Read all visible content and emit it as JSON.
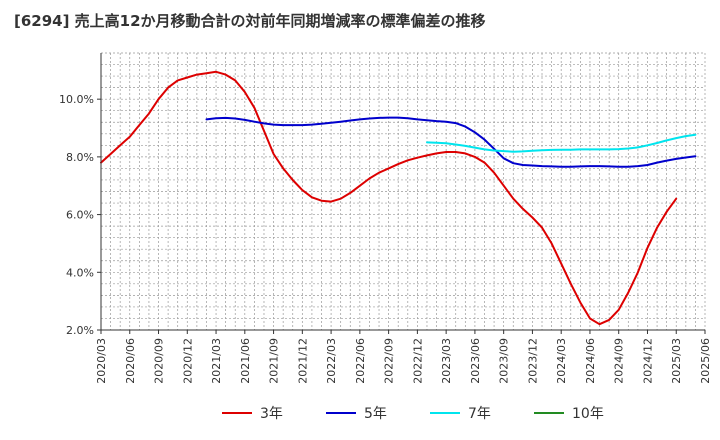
{
  "title": "[6294]  売上高12か月移動合計の対前年同期増減率の標準偏差の推移",
  "chart_data": {
    "type": "line",
    "title": "[6294]  売上高12か月移動合計の対前年同期増減率の標準偏差の推移",
    "xlabel": "",
    "ylabel": "",
    "ylim": [
      2.0,
      11.6
    ],
    "y_ticks": [
      2.0,
      4.0,
      6.0,
      8.0,
      10.0
    ],
    "y_tick_labels": [
      "2.0%",
      "4.0%",
      "6.0%",
      "8.0%",
      "10.0%"
    ],
    "x_tick_labels": [
      "2020/03",
      "2020/06",
      "2020/09",
      "2020/12",
      "2021/03",
      "2021/06",
      "2021/09",
      "2021/12",
      "2022/03",
      "2022/06",
      "2022/09",
      "2022/12",
      "2023/03",
      "2023/06",
      "2023/09",
      "2023/12",
      "2024/03",
      "2024/06",
      "2024/09",
      "2024/12",
      "2025/03",
      "2025/06"
    ],
    "grid": true,
    "legend_position": "bottom",
    "series": [
      {
        "name": "3年",
        "color": "#dd0000",
        "points": [
          [
            "2020/03",
            7.8
          ],
          [
            "2020/04",
            8.1
          ],
          [
            "2020/05",
            8.4
          ],
          [
            "2020/06",
            8.7
          ],
          [
            "2020/07",
            9.1
          ],
          [
            "2020/08",
            9.5
          ],
          [
            "2020/09",
            10.0
          ],
          [
            "2020/10",
            10.4
          ],
          [
            "2020/11",
            10.65
          ],
          [
            "2020/12",
            10.75
          ],
          [
            "2021/01",
            10.85
          ],
          [
            "2021/02",
            10.9
          ],
          [
            "2021/03",
            10.95
          ],
          [
            "2021/04",
            10.85
          ],
          [
            "2021/05",
            10.65
          ],
          [
            "2021/06",
            10.25
          ],
          [
            "2021/07",
            9.7
          ],
          [
            "2021/08",
            8.9
          ],
          [
            "2021/09",
            8.1
          ],
          [
            "2021/10",
            7.6
          ],
          [
            "2021/11",
            7.2
          ],
          [
            "2021/12",
            6.85
          ],
          [
            "2021/13",
            6.6
          ],
          [
            "2022/02",
            6.48
          ],
          [
            "2022/03",
            6.45
          ],
          [
            "2022/04",
            6.55
          ],
          [
            "2022/05",
            6.75
          ],
          [
            "2022/06",
            7.0
          ],
          [
            "2022/07",
            7.25
          ],
          [
            "2022/08",
            7.45
          ],
          [
            "2022/09",
            7.6
          ],
          [
            "2022/10",
            7.75
          ],
          [
            "2022/11",
            7.88
          ],
          [
            "2022/12",
            7.97
          ],
          [
            "2023/01",
            8.05
          ],
          [
            "2023/02",
            8.12
          ],
          [
            "2023/03",
            8.17
          ],
          [
            "2023/04",
            8.17
          ],
          [
            "2023/05",
            8.12
          ],
          [
            "2023/06",
            8.0
          ],
          [
            "2023/07",
            7.8
          ],
          [
            "2023/08",
            7.45
          ],
          [
            "2023/09",
            7.0
          ],
          [
            "2023/10",
            6.55
          ],
          [
            "2023/11",
            6.2
          ],
          [
            "2023/12",
            5.9
          ],
          [
            "2024/01",
            5.55
          ],
          [
            "2024/02",
            5.0
          ],
          [
            "2024/03",
            4.3
          ],
          [
            "2024/04",
            3.6
          ],
          [
            "2024/05",
            2.95
          ],
          [
            "2024/06",
            2.4
          ],
          [
            "2024/07",
            2.2
          ],
          [
            "2024/08",
            2.35
          ],
          [
            "2024/09",
            2.7
          ],
          [
            "2024/10",
            3.3
          ],
          [
            "2024/11",
            4.0
          ],
          [
            "2024/12",
            4.85
          ],
          [
            "2025/01",
            5.55
          ],
          [
            "2025/02",
            6.1
          ],
          [
            "2025/03",
            6.55
          ]
        ]
      },
      {
        "name": "5年",
        "color": "#0000cc",
        "points": [
          [
            "2021/02",
            9.3
          ],
          [
            "2021/03",
            9.34
          ],
          [
            "2021/04",
            9.35
          ],
          [
            "2021/05",
            9.33
          ],
          [
            "2021/06",
            9.28
          ],
          [
            "2021/07",
            9.22
          ],
          [
            "2021/08",
            9.16
          ],
          [
            "2021/09",
            9.12
          ],
          [
            "2021/10",
            9.1
          ],
          [
            "2021/11",
            9.1
          ],
          [
            "2021/12",
            9.1
          ],
          [
            "2021/13",
            9.12
          ],
          [
            "2022/02",
            9.15
          ],
          [
            "2022/03",
            9.18
          ],
          [
            "2022/04",
            9.22
          ],
          [
            "2022/05",
            9.26
          ],
          [
            "2022/06",
            9.3
          ],
          [
            "2022/07",
            9.33
          ],
          [
            "2022/08",
            9.35
          ],
          [
            "2022/09",
            9.36
          ],
          [
            "2022/10",
            9.36
          ],
          [
            "2022/11",
            9.34
          ],
          [
            "2022/12",
            9.3
          ],
          [
            "2023/01",
            9.27
          ],
          [
            "2023/02",
            9.24
          ],
          [
            "2023/03",
            9.22
          ],
          [
            "2023/04",
            9.17
          ],
          [
            "2023/05",
            9.05
          ],
          [
            "2023/06",
            8.85
          ],
          [
            "2023/07",
            8.6
          ],
          [
            "2023/08",
            8.28
          ],
          [
            "2023/09",
            7.95
          ],
          [
            "2023/10",
            7.78
          ],
          [
            "2023/11",
            7.72
          ],
          [
            "2023/12",
            7.7
          ],
          [
            "2024/01",
            7.68
          ],
          [
            "2024/02",
            7.67
          ],
          [
            "2024/03",
            7.66
          ],
          [
            "2024/04",
            7.66
          ],
          [
            "2024/05",
            7.67
          ],
          [
            "2024/06",
            7.68
          ],
          [
            "2024/07",
            7.68
          ],
          [
            "2024/08",
            7.67
          ],
          [
            "2024/09",
            7.66
          ],
          [
            "2024/10",
            7.66
          ],
          [
            "2024/11",
            7.68
          ],
          [
            "2024/12",
            7.72
          ],
          [
            "2025/01",
            7.8
          ],
          [
            "2025/02",
            7.87
          ],
          [
            "2025/03",
            7.93
          ],
          [
            "2025/04",
            7.98
          ],
          [
            "2025/05",
            8.02
          ]
        ]
      },
      {
        "name": "7年",
        "color": "#00e5ee",
        "points": [
          [
            "2023/01",
            8.5
          ],
          [
            "2023/02",
            8.49
          ],
          [
            "2023/03",
            8.47
          ],
          [
            "2023/04",
            8.43
          ],
          [
            "2023/05",
            8.38
          ],
          [
            "2023/06",
            8.32
          ],
          [
            "2023/07",
            8.26
          ],
          [
            "2023/08",
            8.22
          ],
          [
            "2023/09",
            8.2
          ],
          [
            "2023/10",
            8.18
          ],
          [
            "2023/11",
            8.19
          ],
          [
            "2023/12",
            8.21
          ],
          [
            "2024/01",
            8.23
          ],
          [
            "2024/02",
            8.24
          ],
          [
            "2024/03",
            8.25
          ],
          [
            "2024/04",
            8.25
          ],
          [
            "2024/05",
            8.26
          ],
          [
            "2024/06",
            8.26
          ],
          [
            "2024/07",
            8.26
          ],
          [
            "2024/08",
            8.26
          ],
          [
            "2024/09",
            8.27
          ],
          [
            "2024/10",
            8.29
          ],
          [
            "2024/11",
            8.33
          ],
          [
            "2024/12",
            8.4
          ],
          [
            "2025/01",
            8.48
          ],
          [
            "2025/02",
            8.57
          ],
          [
            "2025/03",
            8.65
          ],
          [
            "2025/04",
            8.72
          ],
          [
            "2025/05",
            8.77
          ]
        ]
      },
      {
        "name": "10年",
        "color": "#228b22",
        "points": []
      }
    ]
  }
}
